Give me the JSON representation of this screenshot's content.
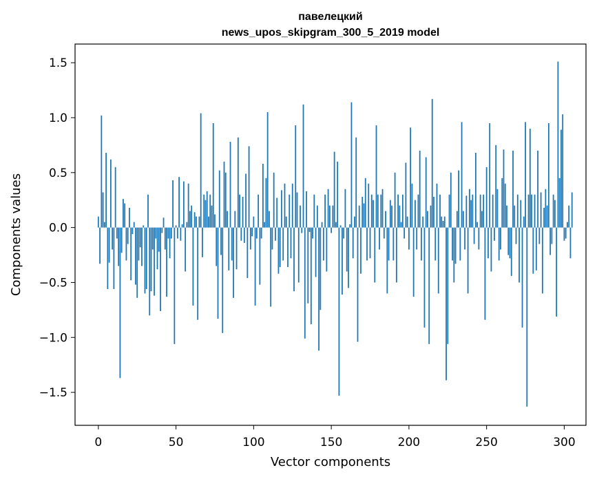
{
  "chart_data": {
    "type": "bar",
    "title": "павелецкий",
    "subtitle": "news_upos_skipgram_300_5_2019 model",
    "xlabel": "Vector components",
    "ylabel": "Components values",
    "xlim": [
      -15,
      314
    ],
    "ylim": [
      -1.8,
      1.67
    ],
    "xticks": [
      0,
      50,
      100,
      150,
      200,
      250,
      300
    ],
    "xtick_labels": [
      "0",
      "50",
      "100",
      "150",
      "200",
      "250",
      "300"
    ],
    "yticks": [
      1.5,
      1.0,
      0.5,
      0.0,
      -0.5,
      -1.0,
      -1.5
    ],
    "ytick_labels": [
      "1.5",
      "1.0",
      "0.5",
      "0.0",
      "−0.5",
      "−1.0",
      "−1.5"
    ],
    "grid": false,
    "bar_color": "#1f77b4",
    "values": [
      0.1,
      -0.33,
      1.02,
      0.32,
      0.05,
      0.68,
      -0.56,
      -0.32,
      0.62,
      -0.2,
      -0.56,
      0.55,
      -0.1,
      -0.35,
      -1.37,
      -0.23,
      0.26,
      0.22,
      -0.3,
      -0.15,
      0.18,
      -0.48,
      -0.06,
      0.05,
      -0.52,
      -0.64,
      -0.3,
      -0.18,
      -0.35,
      0.02,
      -0.6,
      -0.56,
      0.3,
      -0.8,
      -0.58,
      -0.2,
      -0.62,
      -0.1,
      -0.38,
      -0.22,
      -0.76,
      -0.05,
      0.09,
      -0.2,
      -0.63,
      -0.1,
      -0.28,
      -0.1,
      0.43,
      -1.06,
      0.02,
      -0.1,
      0.46,
      -0.12,
      0.03,
      0.42,
      -0.4,
      0.05,
      0.4,
      0.15,
      0.2,
      -0.71,
      0.14,
      0.1,
      -0.84,
      0.1,
      1.04,
      -0.27,
      0.3,
      0.25,
      0.33,
      0.1,
      0.3,
      0.2,
      0.95,
      0.12,
      -0.35,
      -0.83,
      0.52,
      -0.25,
      -0.96,
      0.6,
      0.5,
      0.15,
      -0.39,
      0.78,
      -0.3,
      -0.64,
      0.15,
      -0.38,
      0.82,
      0.3,
      -0.12,
      0.28,
      -0.14,
      0.49,
      -0.46,
      0.74,
      -0.2,
      -0.08,
      0.1,
      -0.71,
      -0.1,
      0.3,
      -0.52,
      -0.1,
      0.58,
      0.05,
      0.45,
      1.05,
      0.15,
      -0.72,
      -0.2,
      0.5,
      -0.12,
      0.27,
      -0.42,
      -0.36,
      0.34,
      -0.3,
      0.4,
      0.1,
      -0.36,
      0.3,
      -0.28,
      0.4,
      -0.58,
      0.93,
      0.32,
      -0.5,
      0.2,
      -0.05,
      1.12,
      -1.01,
      0.33,
      -0.69,
      -0.04,
      -0.88,
      -0.1,
      0.3,
      -0.45,
      0.2,
      -1.12,
      -0.75,
      0.05,
      -0.3,
      0.3,
      -0.4,
      0.35,
      0.2,
      -0.05,
      0.2,
      0.69,
      0.05,
      0.6,
      -1.53,
      0.02,
      -0.61,
      -0.1,
      0.35,
      -0.4,
      -0.55,
      0.03,
      1.14,
      -0.28,
      0.1,
      0.82,
      -1.04,
      0.2,
      -0.42,
      0.28,
      0.22,
      0.45,
      -0.3,
      0.4,
      -0.28,
      0.3,
      0.25,
      -0.5,
      0.93,
      0.3,
      -0.2,
      0.3,
      0.35,
      -0.1,
      0.15,
      -0.6,
      -0.3,
      0.25,
      0.2,
      -0.3,
      0.5,
      -0.5,
      0.3,
      0.2,
      0.05,
      0.3,
      -0.1,
      0.59,
      0.1,
      -0.2,
      0.91,
      0.4,
      -0.63,
      0.25,
      -0.2,
      0.3,
      0.7,
      -0.3,
      0.1,
      -0.91,
      0.64,
      0.15,
      -1.06,
      0.2,
      1.17,
      0.28,
      -0.3,
      0.4,
      -0.6,
      0.3,
      0.1,
      0.06,
      0.1,
      -1.39,
      -1.06,
      0.3,
      0.5,
      -0.3,
      -0.5,
      -0.33,
      0.15,
      0.52,
      -0.3,
      0.96,
      0.15,
      -0.2,
      0.29,
      -0.6,
      0.35,
      0.25,
      0.3,
      -0.15,
      0.68,
      0.05,
      -0.2,
      0.3,
      0.15,
      0.3,
      -0.84,
      0.55,
      -0.28,
      0.95,
      -0.4,
      0.3,
      -0.12,
      0.75,
      0.35,
      -0.3,
      -0.2,
      0.45,
      0.71,
      0.4,
      0.2,
      -0.25,
      -0.28,
      -0.44,
      0.7,
      0.2,
      -0.15,
      0.3,
      -0.5,
      0.25,
      -0.91,
      0.1,
      0.96,
      -1.63,
      0.3,
      0.9,
      0.3,
      -0.42,
      0.3,
      -0.39,
      0.7,
      -0.15,
      0.32,
      -0.6,
      0.18,
      0.35,
      0.2,
      0.95,
      -0.25,
      -0.15,
      0.3,
      0.25,
      -0.81,
      1.51,
      0.45,
      0.89,
      1.03,
      -0.12,
      -0.1,
      0.05,
      0.2,
      -0.28,
      0.32
    ]
  }
}
